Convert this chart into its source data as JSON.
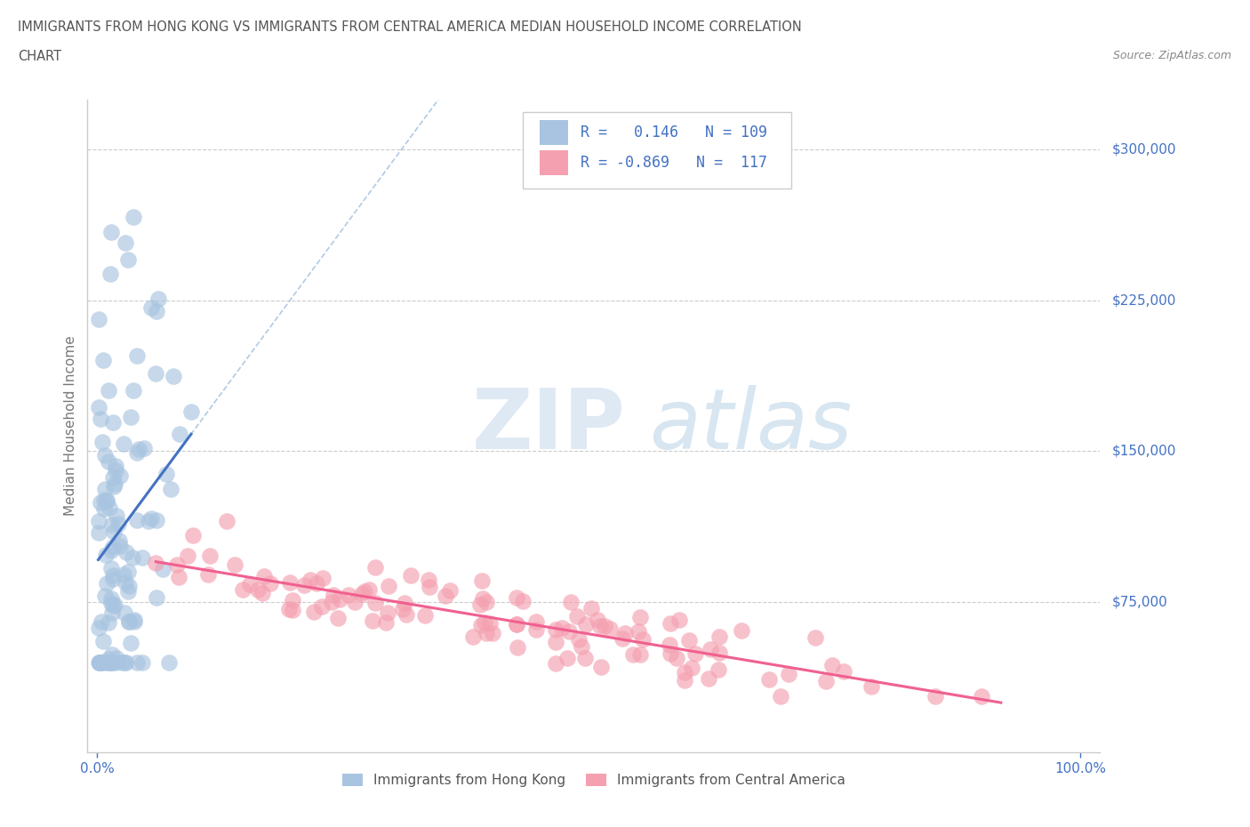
{
  "title_line1": "IMMIGRANTS FROM HONG KONG VS IMMIGRANTS FROM CENTRAL AMERICA MEDIAN HOUSEHOLD INCOME CORRELATION",
  "title_line2": "CHART",
  "source": "Source: ZipAtlas.com",
  "ylabel": "Median Household Income",
  "ylim": [
    0,
    325000
  ],
  "xlim": [
    -0.01,
    1.02
  ],
  "y_ticks": [
    75000,
    150000,
    225000,
    300000
  ],
  "y_tick_labels": [
    "$75,000",
    "$150,000",
    "$225,000",
    "$300,000"
  ],
  "hk_R": 0.146,
  "hk_N": 109,
  "ca_R": -0.869,
  "ca_N": 117,
  "hk_color": "#a8c4e0",
  "ca_color": "#f4a0b0",
  "hk_line_color": "#4472c4",
  "ca_line_color": "#f06090",
  "dashed_line_color": "#a8c4e0",
  "legend_label_hk": "Immigrants from Hong Kong",
  "legend_label_ca": "Immigrants from Central America",
  "watermark_zip": "ZIP",
  "watermark_atlas": "atlas",
  "background_color": "#ffffff",
  "grid_color": "#cccccc",
  "title_color": "#555555",
  "axis_color": "#4472c4"
}
